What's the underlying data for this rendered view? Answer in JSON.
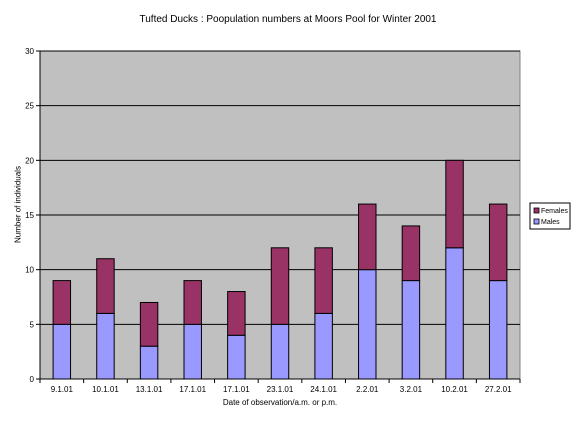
{
  "chart_data": {
    "type": "bar",
    "stacked": true,
    "title": "Tufted Ducks : Poopulation numbers at Moors Pool for Winter 2001",
    "xlabel": "Date of observation/a.m. or p.m.",
    "ylabel": "Number of individuals",
    "ylim": [
      0,
      30
    ],
    "yticks": [
      0,
      5,
      10,
      15,
      20,
      25,
      30
    ],
    "grid": true,
    "legend_position": "right",
    "plot_background": "#c0c0c0",
    "categories": [
      "9.1.01",
      "10.1.01",
      "13.1.01",
      "17.1.01",
      "17.1.01",
      "23.1.01",
      "24.1.01",
      "2.2.01",
      "3.2.01",
      "10.2.01",
      "27.2.01"
    ],
    "series": [
      {
        "name": "Males",
        "color": "#9999ff",
        "values": [
          5,
          6,
          3,
          5,
          4,
          5,
          6,
          10,
          9,
          12,
          9
        ]
      },
      {
        "name": "Females",
        "color": "#993366",
        "values": [
          4,
          5,
          4,
          4,
          4,
          7,
          6,
          6,
          5,
          8,
          7
        ]
      }
    ]
  }
}
